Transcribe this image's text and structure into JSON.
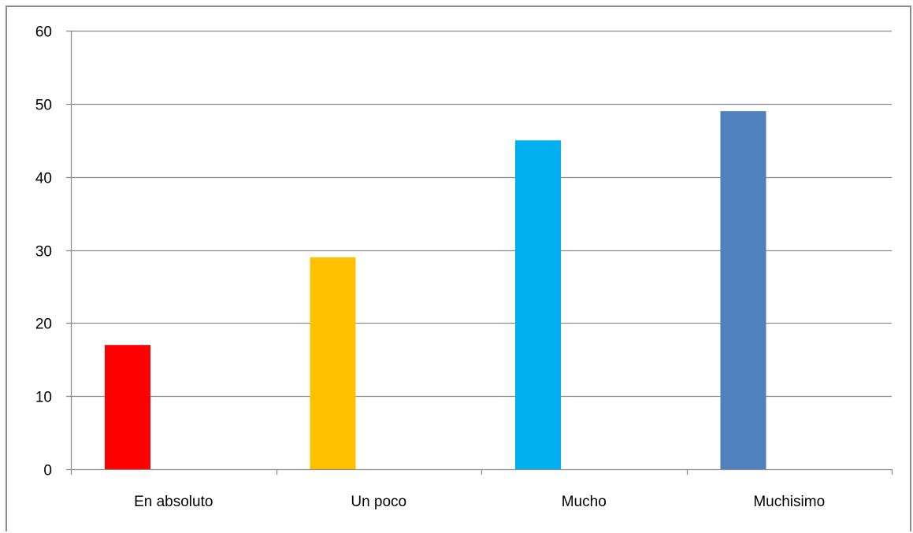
{
  "chart_data": {
    "type": "bar",
    "title": "",
    "xlabel": "",
    "ylabel": "",
    "categories": [
      "En absoluto",
      "Un poco",
      "Mucho",
      "Muchisimo"
    ],
    "values": [
      17,
      29,
      45,
      49
    ],
    "colors": [
      "#ff0000",
      "#ffc000",
      "#00b0f0",
      "#4f81bd"
    ],
    "ylim": [
      0,
      60
    ],
    "yticks": [
      0,
      10,
      20,
      30,
      40,
      50,
      60
    ],
    "grid": true,
    "legend": "none",
    "gridline_color": "#8c8c8c",
    "axis_color": "#8c8c8c"
  }
}
